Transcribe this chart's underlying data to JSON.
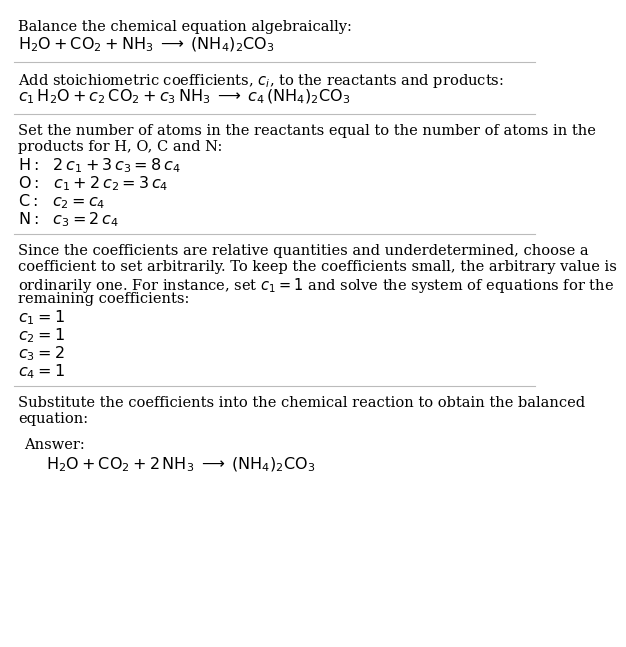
{
  "bg_color": "#ffffff",
  "text_color": "#000000",
  "answer_box_bg": "#dff0f7",
  "answer_box_border": "#90c4d8",
  "section1_title": "Balance the chemical equation algebraically:",
  "section1_eq": "$\\mathrm{H_2O + CO_2 + NH_3 \\;\\longrightarrow\\; (NH_4)_2CO_3}$",
  "section2_title": "Add stoichiometric coefficients, $c_i$, to the reactants and products:",
  "section2_eq": "$c_1\\,\\mathrm{H_2O} + c_2\\,\\mathrm{CO_2} + c_3\\,\\mathrm{NH_3} \\;\\longrightarrow\\; c_4\\,(\\mathrm{NH_4})_2\\mathrm{CO_3}$",
  "section3_title_line1": "Set the number of atoms in the reactants equal to the number of atoms in the",
  "section3_title_line2": "products for H, O, C and N:",
  "section3_lines": [
    "$\\mathrm{H:}\\;\\;\\, 2\\,c_1 + 3\\,c_3 = 8\\,c_4$",
    "$\\mathrm{O:}\\;\\;\\, c_1 + 2\\,c_2 = 3\\,c_4$",
    "$\\mathrm{C:}\\;\\;\\, c_2 = c_4$",
    "$\\mathrm{N:}\\;\\;\\, c_3 = 2\\,c_4$"
  ],
  "section4_title_line1": "Since the coefficients are relative quantities and underdetermined, choose a",
  "section4_title_line2": "coefficient to set arbitrarily. To keep the coefficients small, the arbitrary value is",
  "section4_title_line3": "ordinarily one. For instance, set $c_1 = 1$ and solve the system of equations for the",
  "section4_title_line4": "remaining coefficients:",
  "section4_lines": [
    "$c_1 = 1$",
    "$c_2 = 1$",
    "$c_3 = 2$",
    "$c_4 = 1$"
  ],
  "section5_title_line1": "Substitute the coefficients into the chemical reaction to obtain the balanced",
  "section5_title_line2": "equation:",
  "answer_label": "Answer:",
  "answer_eq": "$\\mathrm{H_2O + CO_2 + 2\\,NH_3 \\;\\longrightarrow\\; (NH_4)_2CO_3}$",
  "font_size_prose": 10.5,
  "font_size_math": 11.5,
  "font_size_answer_label": 10.5,
  "line_sep": 16,
  "line_sep_math": 17
}
